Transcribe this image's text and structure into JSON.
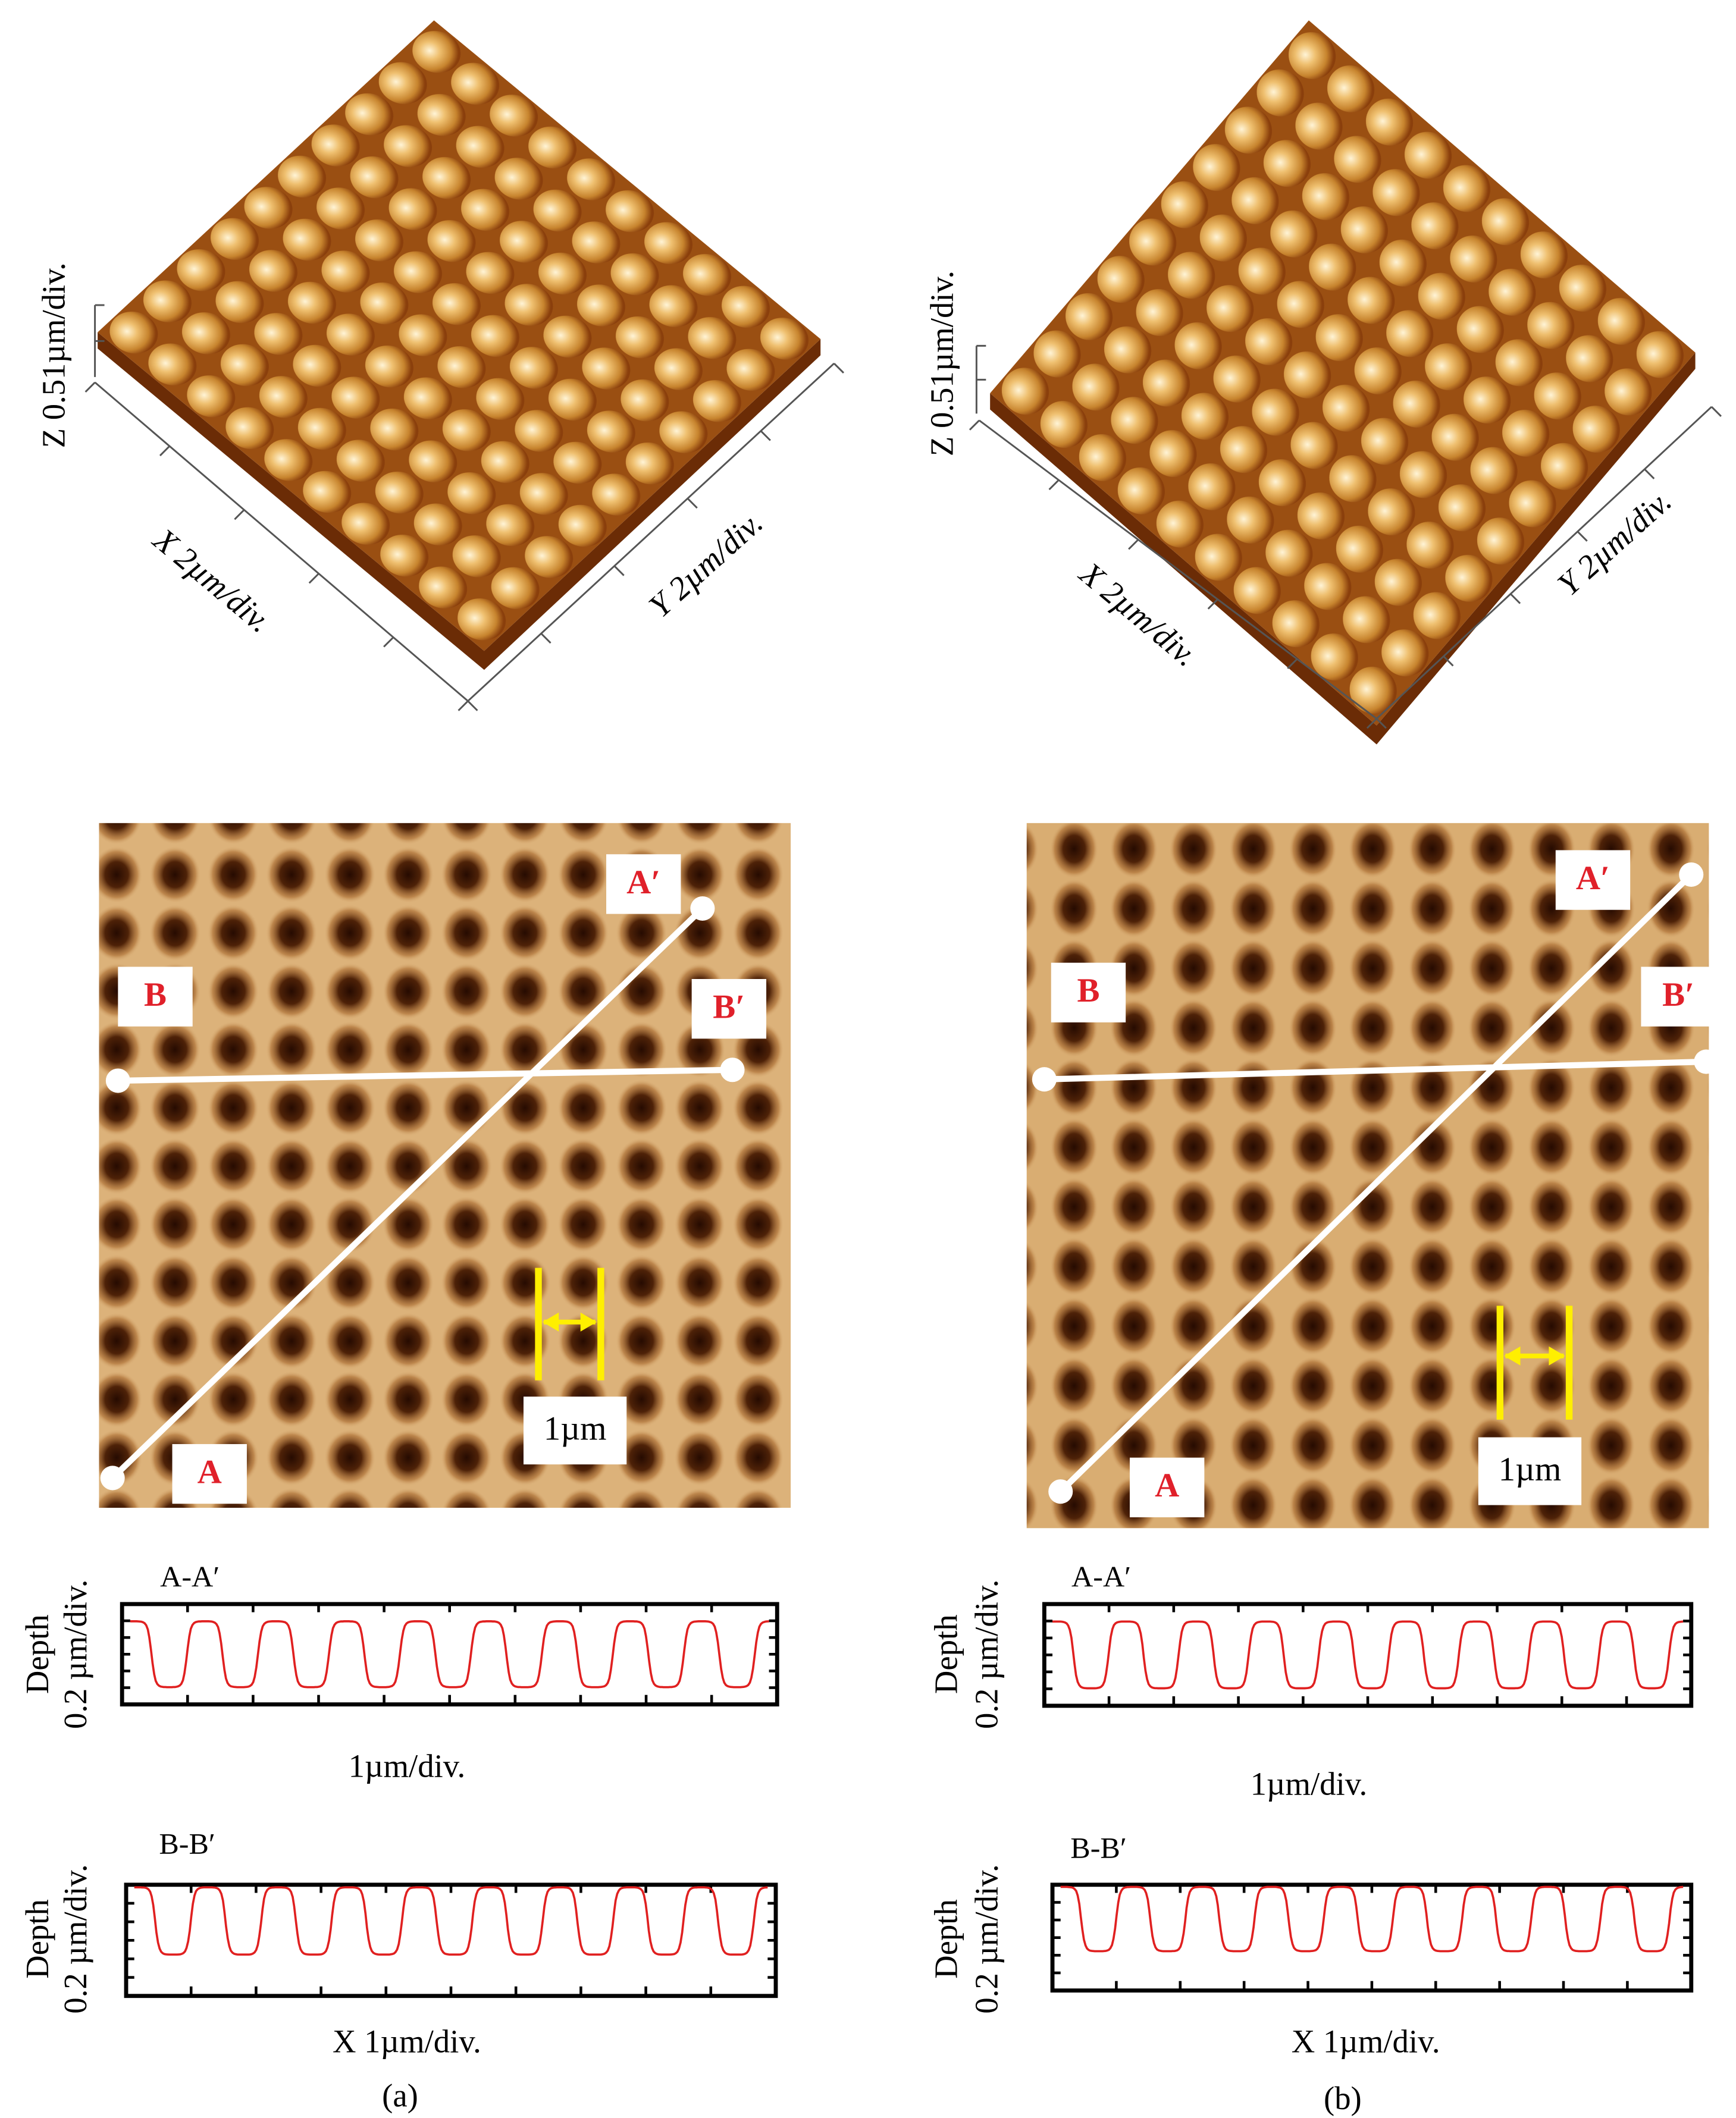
{
  "panels": [
    {
      "caption": "(a)",
      "surface": {
        "z_axis": "Z 0.51µm/div.",
        "x_axis": "X 2µm/div.",
        "y_axis": "Y 2µm/div."
      },
      "image": {
        "markers": [
          "A",
          "A′",
          "B",
          "B′"
        ],
        "scale_bar": "1µm"
      },
      "profiles": [
        {
          "title": "A-A′",
          "y_axis": [
            "Depth",
            "0.2 µm/div."
          ],
          "x_axis": "1µm/div."
        },
        {
          "title": "B-B′",
          "y_axis": [
            "Depth",
            "0.2 µm/div."
          ],
          "x_axis": "X 1µm/div."
        }
      ]
    },
    {
      "caption": "(b)",
      "surface": {
        "z_axis": "Z 0.51µm/div.",
        "x_axis": "X 2µm/div.",
        "y_axis": "Y 2µm/div."
      },
      "image": {
        "markers": [
          "A",
          "A′",
          "B",
          "B′"
        ],
        "scale_bar": "1µm"
      },
      "profiles": [
        {
          "title": "A-A′",
          "y_axis": [
            "Depth",
            "0.2 µm/div."
          ],
          "x_axis": "1µm/div."
        },
        {
          "title": "B-B′",
          "y_axis": [
            "Depth",
            "0.2 µm/div."
          ],
          "x_axis": "X 1µm/div."
        }
      ]
    }
  ]
}
